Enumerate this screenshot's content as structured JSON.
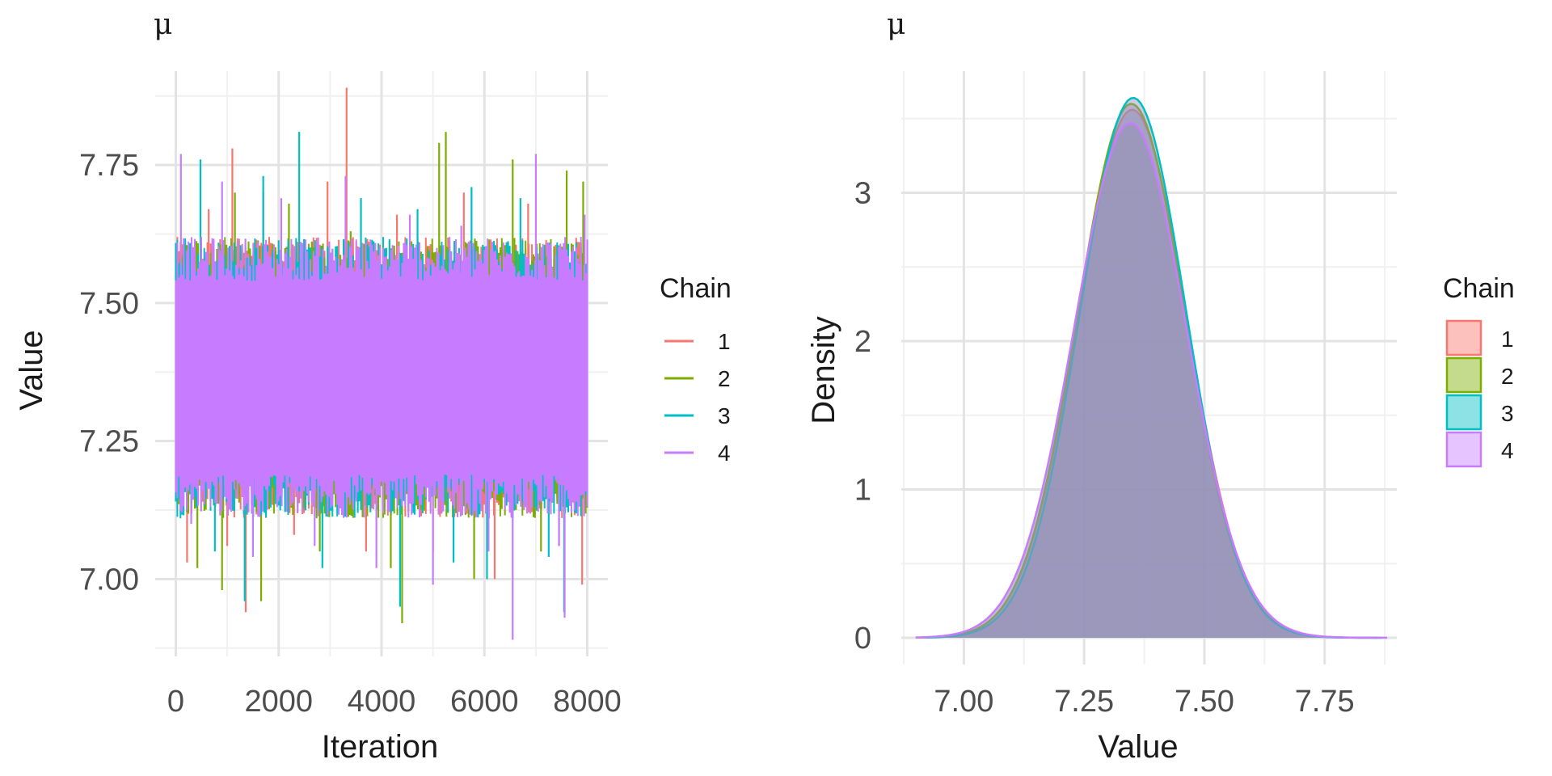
{
  "colors": {
    "chain1": "#F8766D",
    "chain2": "#7CAE00",
    "chain3": "#00BFC4",
    "chain4": "#C77CFF",
    "density_fill": "#9591B8"
  },
  "chart_data": [
    {
      "type": "line",
      "title": "μ",
      "xlabel": "Iteration",
      "ylabel": "Value",
      "xlim": [
        -400,
        8400
      ],
      "ylim": [
        6.86,
        7.92
      ],
      "x_ticks": [
        0,
        2000,
        4000,
        6000,
        8000
      ],
      "x_tick_labels": [
        "0",
        "2000",
        "4000",
        "6000",
        "8000"
      ],
      "y_ticks": [
        7.0,
        7.25,
        7.5,
        7.75
      ],
      "y_tick_labels": [
        "7.00",
        "7.25",
        "7.50",
        "7.75"
      ],
      "iterations": 8000,
      "band_lower": 7.15,
      "band_upper": 7.58,
      "legend_title": "Chain",
      "series": [
        {
          "name": "1",
          "spikes": [
            [
              60,
              7.58
            ],
            [
              220,
              7.03
            ],
            [
              640,
              7.67
            ],
            [
              1000,
              7.06
            ],
            [
              1100,
              7.78
            ],
            [
              1360,
              6.94
            ],
            [
              1700,
              7.7
            ],
            [
              2300,
              7.08
            ],
            [
              2950,
              7.72
            ],
            [
              3320,
              7.89
            ],
            [
              3700,
              7.05
            ],
            [
              4300,
              7.66
            ],
            [
              5000,
              7.05
            ],
            [
              5600,
              7.7
            ],
            [
              6200,
              7.0
            ],
            [
              6850,
              7.68
            ],
            [
              7450,
              7.06
            ],
            [
              7900,
              6.99
            ]
          ]
        },
        {
          "name": "2",
          "spikes": [
            [
              420,
              7.02
            ],
            [
              900,
              6.98
            ],
            [
              1150,
              7.7
            ],
            [
              1660,
              6.96
            ],
            [
              2200,
              7.68
            ],
            [
              2800,
              7.05
            ],
            [
              3400,
              7.63
            ],
            [
              4180,
              7.02
            ],
            [
              4400,
              6.92
            ],
            [
              5120,
              7.79
            ],
            [
              5250,
              7.81
            ],
            [
              5800,
              7.0
            ],
            [
              6550,
              7.76
            ],
            [
              7100,
              7.05
            ],
            [
              7600,
              7.74
            ],
            [
              7920,
              7.72
            ]
          ]
        },
        {
          "name": "3",
          "spikes": [
            [
              480,
              7.76
            ],
            [
              760,
              7.05
            ],
            [
              1340,
              6.96
            ],
            [
              1700,
              7.73
            ],
            [
              2400,
              7.81
            ],
            [
              2850,
              7.02
            ],
            [
              3600,
              7.69
            ],
            [
              4360,
              6.95
            ],
            [
              4700,
              7.67
            ],
            [
              5400,
              7.03
            ],
            [
              5750,
              7.71
            ],
            [
              6050,
              7.0
            ],
            [
              6700,
              7.69
            ],
            [
              7250,
              7.04
            ],
            [
              7550,
              6.94
            ]
          ]
        },
        {
          "name": "4",
          "spikes": [
            [
              100,
              7.77
            ],
            [
              300,
              7.1
            ],
            [
              900,
              7.72
            ],
            [
              1500,
              7.04
            ],
            [
              2050,
              7.69
            ],
            [
              2700,
              7.06
            ],
            [
              3300,
              7.73
            ],
            [
              3900,
              7.02
            ],
            [
              4550,
              7.66
            ],
            [
              5000,
              6.99
            ],
            [
              5550,
              7.64
            ],
            [
              6080,
              7.05
            ],
            [
              6550,
              6.89
            ],
            [
              7000,
              7.77
            ],
            [
              7450,
              7.06
            ],
            [
              7560,
              6.93
            ],
            [
              7950,
              7.66
            ]
          ]
        }
      ]
    },
    {
      "type": "area",
      "title": "μ",
      "xlabel": "Value",
      "ylabel": "Density",
      "xlim": [
        6.87,
        7.9
      ],
      "ylim": [
        -0.18,
        3.82
      ],
      "x_ticks": [
        7.0,
        7.25,
        7.5,
        7.75
      ],
      "x_tick_labels": [
        "7.00",
        "7.25",
        "7.50",
        "7.75"
      ],
      "y_ticks": [
        0,
        1,
        2,
        3
      ],
      "y_tick_labels": [
        "0",
        "1",
        "2",
        "3"
      ],
      "legend_title": "Chain",
      "series": [
        {
          "name": "1",
          "x_range": [
            6.9,
            7.86
          ],
          "mean": 7.35,
          "sd": 0.113,
          "peak": 3.56
        },
        {
          "name": "2",
          "x_range": [
            6.9,
            7.86
          ],
          "mean": 7.348,
          "sd": 0.112,
          "peak": 3.6
        },
        {
          "name": "3",
          "x_range": [
            6.92,
            7.87
          ],
          "mean": 7.352,
          "sd": 0.11,
          "peak": 3.64
        },
        {
          "name": "4",
          "x_range": [
            6.9,
            7.88
          ],
          "mean": 7.346,
          "sd": 0.116,
          "peak": 3.47
        }
      ]
    }
  ]
}
